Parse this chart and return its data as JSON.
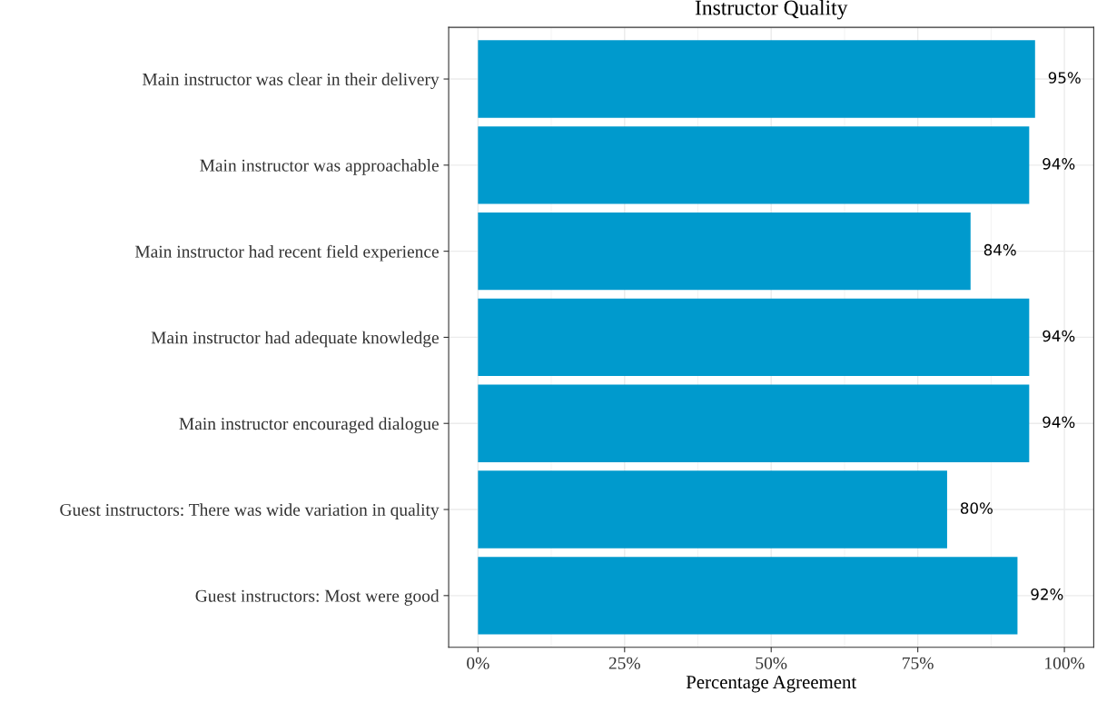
{
  "chart_data": {
    "type": "bar",
    "orientation": "horizontal",
    "title": "Instructor Quality",
    "xlabel": "Percentage Agreement",
    "categories": [
      "Main instructor was clear in their delivery",
      "Main instructor was approachable",
      "Main instructor had recent field experience",
      "Main instructor had adequate knowledge",
      "Main instructor encouraged dialogue",
      "Guest instructors: There was wide variation in quality",
      "Guest instructors: Most were good"
    ],
    "values": [
      95,
      94,
      84,
      94,
      94,
      80,
      92
    ],
    "value_labels": [
      "95%",
      "94%",
      "84%",
      "94%",
      "94%",
      "80%",
      "92%"
    ],
    "color": "#009acd",
    "xlim": [
      -5,
      105
    ],
    "xticks": [
      {
        "value": 0,
        "label": "0%"
      },
      {
        "value": 25,
        "label": "25%"
      },
      {
        "value": 50,
        "label": "50%"
      },
      {
        "value": 75,
        "label": "75%"
      },
      {
        "value": 100,
        "label": "100%"
      }
    ],
    "grid": true
  }
}
